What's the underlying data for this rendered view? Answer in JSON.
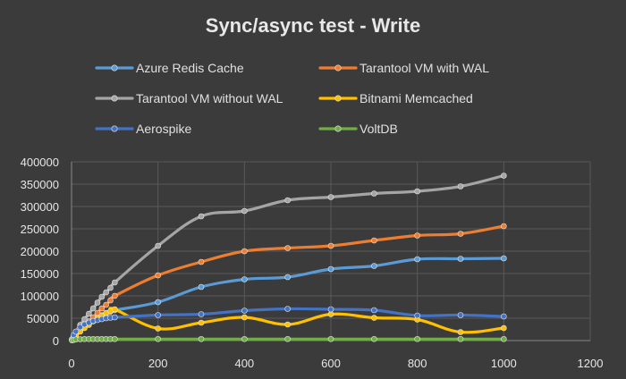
{
  "chart_data": {
    "type": "line",
    "title": "Sync/async test - Write",
    "xlabel": "",
    "ylabel": "",
    "xlim": [
      0,
      1200
    ],
    "ylim": [
      0,
      400000
    ],
    "x_ticks": [
      0,
      200,
      400,
      600,
      800,
      1000,
      1200
    ],
    "y_ticks": [
      0,
      50000,
      100000,
      150000,
      200000,
      250000,
      300000,
      350000,
      400000
    ],
    "x_tick_labels": [
      "0",
      "200",
      "400",
      "600",
      "800",
      "1000",
      "1200"
    ],
    "y_tick_labels": [
      "0",
      "50000",
      "100000",
      "150000",
      "200000",
      "250000",
      "300000",
      "350000",
      "400000"
    ],
    "grid": true,
    "legend_position": "top",
    "x": [
      1,
      5,
      10,
      20,
      30,
      40,
      50,
      60,
      70,
      80,
      90,
      100,
      200,
      300,
      400,
      500,
      600,
      700,
      800,
      900,
      1000
    ],
    "series": [
      {
        "name": "Azure Redis Cache",
        "color": "#5b9bd5",
        "values": [
          3000,
          10000,
          18000,
          28000,
          35000,
          41000,
          47000,
          52000,
          57000,
          61000,
          65000,
          68000,
          86000,
          120000,
          137000,
          142000,
          160000,
          167000,
          182000,
          183000,
          184000
        ]
      },
      {
        "name": "Tarantool VM with WAL",
        "color": "#ed7d31",
        "values": [
          2000,
          8000,
          14000,
          24000,
          33000,
          43000,
          52000,
          62000,
          72000,
          80000,
          90000,
          100000,
          146000,
          176000,
          200000,
          207000,
          212000,
          224000,
          235000,
          239000,
          256000
        ]
      },
      {
        "name": "Tarantool VM without WAL",
        "color": "#a5a5a5",
        "values": [
          2000,
          10000,
          20000,
          35000,
          48000,
          60000,
          72000,
          85000,
          98000,
          108000,
          118000,
          130000,
          212000,
          278000,
          290000,
          314000,
          321000,
          329000,
          334000,
          345000,
          369000
        ]
      },
      {
        "name": "Bitnami Memcached",
        "color": "#ffc000",
        "values": [
          1000,
          5000,
          10000,
          20000,
          28000,
          35000,
          43000,
          50000,
          56000,
          62000,
          66000,
          70000,
          27000,
          40000,
          52000,
          36000,
          59000,
          51000,
          47000,
          19000,
          28000
        ]
      },
      {
        "name": "Aerospike",
        "color": "#4472c4",
        "values": [
          3000,
          12000,
          20000,
          30000,
          36000,
          40000,
          44000,
          46000,
          48000,
          50000,
          51000,
          52000,
          57000,
          59000,
          67000,
          71000,
          70000,
          68000,
          56000,
          57000,
          54000
        ]
      },
      {
        "name": "VoltDB",
        "color": "#70ad47",
        "values": [
          500,
          1500,
          2500,
          3000,
          3500,
          3500,
          3500,
          3500,
          3500,
          3500,
          3500,
          3500,
          3500,
          3500,
          3500,
          3500,
          3500,
          3500,
          3500,
          3500,
          3500
        ]
      }
    ]
  }
}
